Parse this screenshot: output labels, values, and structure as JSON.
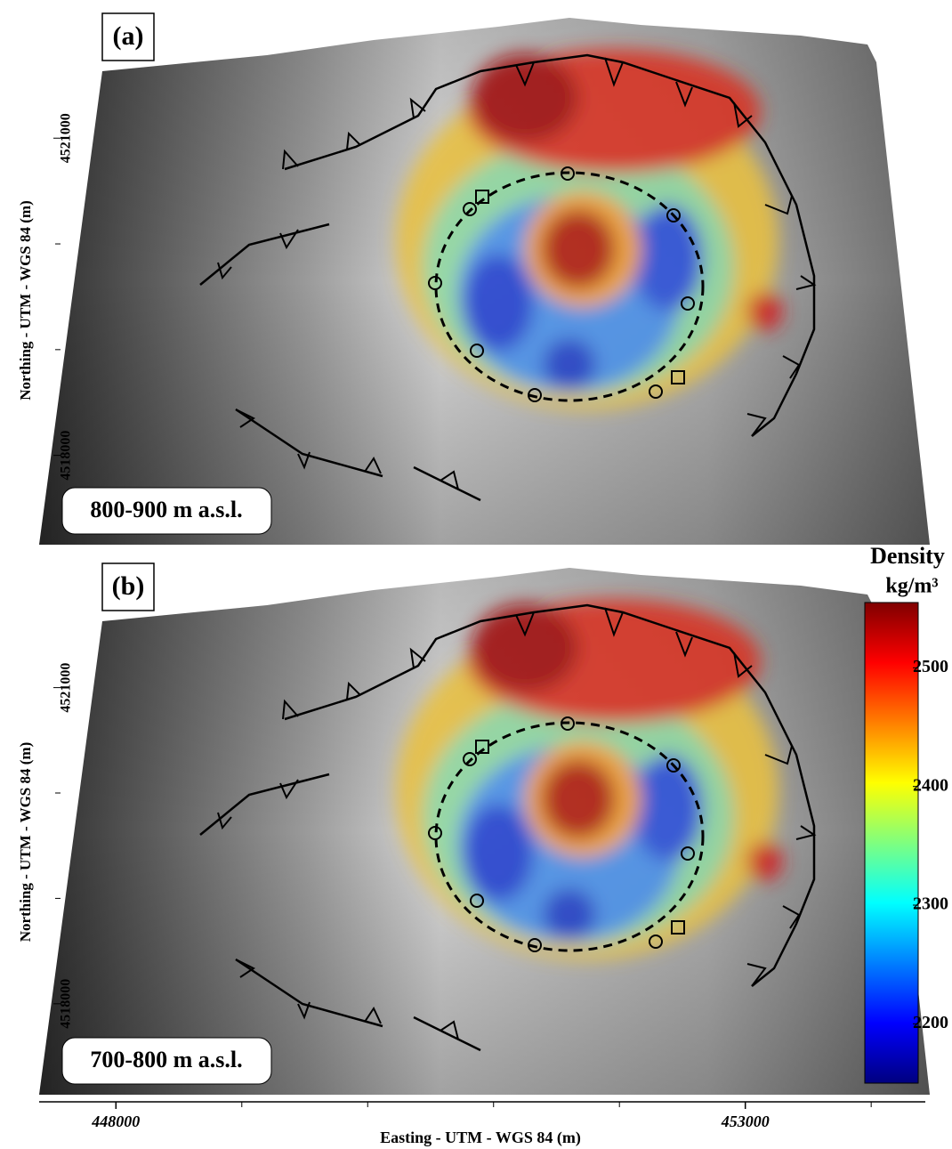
{
  "panels": [
    {
      "label": "(a)",
      "depth": "800-900 m a.s.l.",
      "y_axis": {
        "title": "Northing - UTM - WGS 84 (m)",
        "ticks": [
          4518000,
          4521000
        ],
        "minor_ticks": [
          4519000,
          4520000
        ],
        "lim": [
          4517130,
          4521970
        ]
      }
    },
    {
      "label": "(b)",
      "depth": "700-800 m a.s.l.",
      "y_axis": {
        "title": "Northing - UTM - WGS 84 (m)",
        "ticks": [
          4518000,
          4521000
        ],
        "minor_ticks": [
          4519000,
          4520000
        ],
        "lim": [
          4517120,
          4522120
        ]
      }
    }
  ],
  "x_axis": {
    "title": "Easting - UTM - WGS 84 (m)",
    "ticks": [
      448000,
      453000
    ],
    "minor_ticks": [
      449000,
      450000,
      451000,
      452000,
      454000
    ],
    "lim": [
      447390,
      454430
    ]
  },
  "colorbar": {
    "title": "Density",
    "unit": "kg/m³",
    "colormap": "jet",
    "lim": [
      2150,
      2555
    ],
    "ticks": [
      2200,
      2300,
      2400,
      2500
    ]
  }
}
